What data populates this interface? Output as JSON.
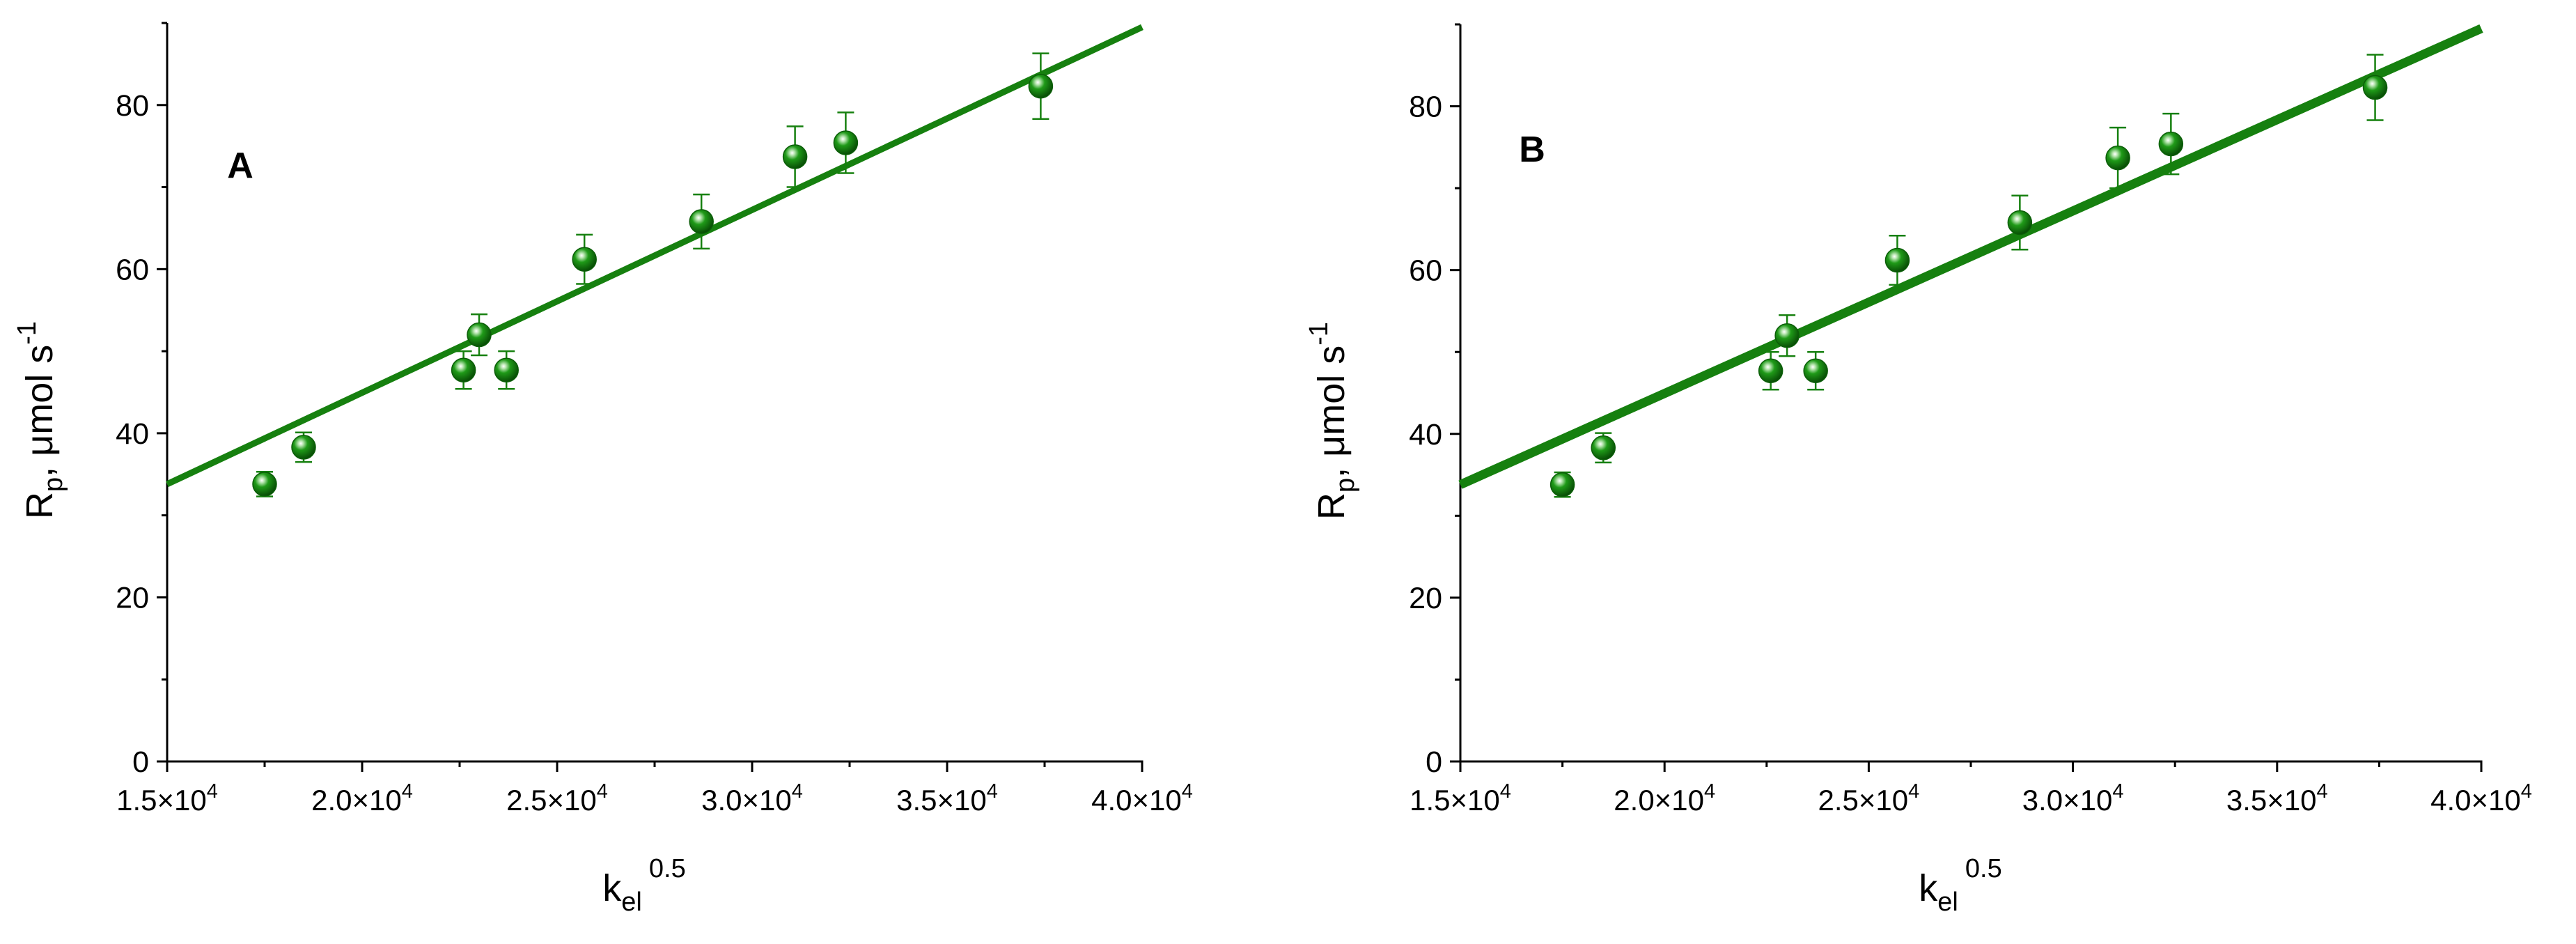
{
  "colors": {
    "series": "#16800f",
    "marker_dark": "#0b5e08",
    "axis": "#000000"
  },
  "exponent_text": "4",
  "chart_data": [
    {
      "type": "scatter",
      "panel_label": "A",
      "xlabel": {
        "base": "k",
        "sub": "el",
        "sup": "0.5"
      },
      "ylabel": {
        "base": "R",
        "sub": "p",
        "mid": ", μmol s",
        "sup": "-1"
      },
      "xlim": [
        15000,
        40000
      ],
      "ylim": [
        0,
        90
      ],
      "xticks": [
        {
          "value": 15000,
          "mantissa": "1.5×10"
        },
        {
          "value": 20000,
          "mantissa": "2.0×10"
        },
        {
          "value": 25000,
          "mantissa": "2.5×10"
        },
        {
          "value": 30000,
          "mantissa": "3.0×10"
        },
        {
          "value": 35000,
          "mantissa": "3.5×10"
        },
        {
          "value": 40000,
          "mantissa": "4.0×10"
        }
      ],
      "yticks": [
        {
          "value": 0,
          "label": "0"
        },
        {
          "value": 20,
          "label": "20"
        },
        {
          "value": 40,
          "label": "40"
        },
        {
          "value": 60,
          "label": "60"
        },
        {
          "value": 80,
          "label": "80"
        }
      ],
      "y_minor_step": 10,
      "points": [
        {
          "x": 17500,
          "y": 33.8,
          "err": 1.5
        },
        {
          "x": 18500,
          "y": 38.3,
          "err": 1.8
        },
        {
          "x": 22600,
          "y": 47.7,
          "err": 2.3
        },
        {
          "x": 23000,
          "y": 52.0,
          "err": 2.5
        },
        {
          "x": 23700,
          "y": 47.7,
          "err": 2.3
        },
        {
          "x": 25700,
          "y": 61.2,
          "err": 3.0
        },
        {
          "x": 28700,
          "y": 65.8,
          "err": 3.3
        },
        {
          "x": 31100,
          "y": 73.7,
          "err": 3.7
        },
        {
          "x": 32400,
          "y": 75.4,
          "err": 3.7
        },
        {
          "x": 37400,
          "y": 82.3,
          "err": 4.0
        }
      ],
      "fit_line": {
        "x": [
          15000,
          40000
        ],
        "y": [
          33.8,
          89.5
        ]
      }
    },
    {
      "type": "scatter",
      "panel_label": "B",
      "xlabel": {
        "base": "k",
        "sub": "el",
        "sup": "0.5"
      },
      "ylabel": {
        "base": "R",
        "sub": "p",
        "mid": ", μmol s",
        "sup": "-1"
      },
      "xlim": [
        15000,
        40000
      ],
      "ylim": [
        0,
        90
      ],
      "xticks": [
        {
          "value": 15000,
          "mantissa": "1.5×10"
        },
        {
          "value": 20000,
          "mantissa": "2.0×10"
        },
        {
          "value": 25000,
          "mantissa": "2.5×10"
        },
        {
          "value": 30000,
          "mantissa": "3.0×10"
        },
        {
          "value": 35000,
          "mantissa": "3.5×10"
        },
        {
          "value": 40000,
          "mantissa": "4.0×10"
        }
      ],
      "yticks": [
        {
          "value": 0,
          "label": "0"
        },
        {
          "value": 20,
          "label": "20"
        },
        {
          "value": 40,
          "label": "40"
        },
        {
          "value": 60,
          "label": "60"
        },
        {
          "value": 80,
          "label": "80"
        }
      ],
      "y_minor_step": 10,
      "points": [
        {
          "x": 17500,
          "y": 33.8,
          "err": 1.5
        },
        {
          "x": 18500,
          "y": 38.3,
          "err": 1.8
        },
        {
          "x": 22600,
          "y": 47.7,
          "err": 2.3
        },
        {
          "x": 23000,
          "y": 52.0,
          "err": 2.5
        },
        {
          "x": 23700,
          "y": 47.7,
          "err": 2.3
        },
        {
          "x": 25700,
          "y": 61.2,
          "err": 3.0
        },
        {
          "x": 28700,
          "y": 65.8,
          "err": 3.3
        },
        {
          "x": 31100,
          "y": 73.7,
          "err": 3.7
        },
        {
          "x": 32400,
          "y": 75.4,
          "err": 3.7
        },
        {
          "x": 37400,
          "y": 82.3,
          "err": 4.0
        }
      ],
      "fit_line": {
        "x": [
          15000,
          40000
        ],
        "y": [
          33.8,
          89.5
        ]
      }
    }
  ]
}
